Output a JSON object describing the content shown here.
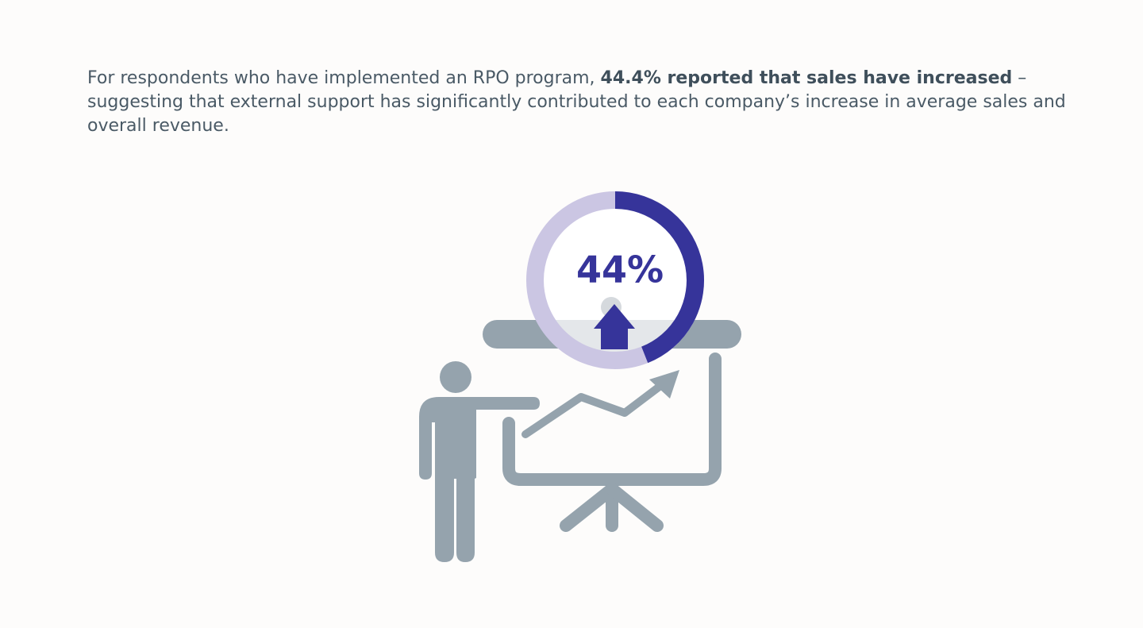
{
  "intro": {
    "lead": "For respondents who have implemented an RPO program, ",
    "highlight": "44.4% reported that sales have increased",
    "tail": " – suggesting that external support has significantly contributed to each company’s increase in average sales and overall revenue."
  },
  "stat": {
    "label": "44%",
    "value": 0.44
  },
  "colors": {
    "text": "#4a5a66",
    "accent": "#36349a",
    "ring_track": "#cbc6e3",
    "icon_gray": "#95a3ad",
    "badge_fill": "#e4e7ea",
    "background": "#fdfcfb"
  },
  "icons": {
    "figure": "presenter-icon",
    "board": "presentation-board-icon",
    "trend": "trend-up-arrow-icon",
    "up": "up-arrow-icon"
  }
}
